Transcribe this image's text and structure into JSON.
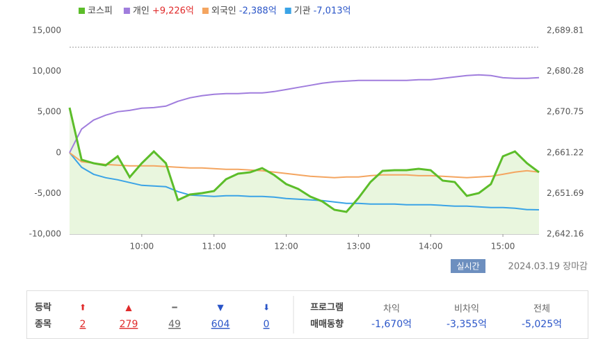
{
  "chart_data": {
    "type": "line",
    "x": [
      540,
      550,
      560,
      570,
      580,
      590,
      600,
      610,
      620,
      630,
      640,
      650,
      660,
      670,
      680,
      690,
      700,
      710,
      720,
      730,
      740,
      750,
      760,
      770,
      780,
      790,
      800,
      810,
      820,
      830,
      840,
      850,
      860,
      870,
      880,
      890,
      900,
      910,
      920,
      930
    ],
    "xlim": [
      540,
      930
    ],
    "xticks": [
      {
        "value": 600,
        "label": "10:00"
      },
      {
        "value": 660,
        "label": "11:00"
      },
      {
        "value": 720,
        "label": "12:00"
      },
      {
        "value": 780,
        "label": "13:00"
      },
      {
        "value": 840,
        "label": "14:00"
      },
      {
        "value": 900,
        "label": "15:00"
      }
    ],
    "ylim": [
      -10000,
      15000
    ],
    "yticks": [
      {
        "value": -10000,
        "label": "-10,000"
      },
      {
        "value": -5000,
        "label": "-5,000"
      },
      0,
      {
        "value": 5000,
        "label": "5,000"
      },
      {
        "value": 10000,
        "label": "10,000"
      },
      {
        "value": 15000,
        "label": "15,000"
      }
    ],
    "y2lim": [
      2642.16,
      2689.81
    ],
    "y2ticks": [
      {
        "value": 2642.16,
        "label": "2,642.16"
      },
      {
        "value": 2651.69,
        "label": "2,651.69"
      },
      {
        "value": 2661.22,
        "label": "2,661.22"
      },
      {
        "value": 2670.75,
        "label": "2,670.75"
      },
      {
        "value": 2680.28,
        "label": "2,680.28"
      },
      {
        "value": 2689.81,
        "label": "2,689.81"
      }
    ],
    "y2_reference": 2685.9,
    "series": [
      {
        "name": "코스피",
        "color": "#5cbd2a",
        "fill": "#e9f6de",
        "axis": "y2",
        "area": true,
        "values": [
          2671.76,
          2659.56,
          2658.75,
          2658.26,
          2660.37,
          2655.5,
          2658.75,
          2661.51,
          2658.75,
          2650.13,
          2651.43,
          2651.75,
          2652.24,
          2655.01,
          2656.31,
          2656.63,
          2657.61,
          2655.98,
          2653.87,
          2652.73,
          2650.94,
          2649.8,
          2647.85,
          2647.36,
          2650.62,
          2654.36,
          2656.96,
          2657.12,
          2657.12,
          2657.45,
          2657.12,
          2654.68,
          2654.36,
          2651.1,
          2651.75,
          2653.87,
          2660.37,
          2661.51,
          2658.75,
          2656.63
        ]
      },
      {
        "name": "개인",
        "color": "#a07ddd",
        "total_label": "+9,226억",
        "total_color": "#e02a2a",
        "values": [
          0,
          2900,
          4010,
          4610,
          5030,
          5200,
          5460,
          5540,
          5720,
          6310,
          6740,
          7000,
          7170,
          7250,
          7250,
          7340,
          7340,
          7510,
          7760,
          8020,
          8280,
          8530,
          8700,
          8790,
          8870,
          8870,
          8870,
          8870,
          8870,
          8960,
          8960,
          9130,
          9300,
          9470,
          9560,
          9470,
          9210,
          9130,
          9130,
          9226
        ]
      },
      {
        "name": "외국인",
        "color": "#f4a560",
        "total_label": "-2,388억",
        "total_color": "#2a55c8",
        "values": [
          0,
          -1110,
          -1280,
          -1450,
          -1540,
          -1620,
          -1620,
          -1620,
          -1710,
          -1790,
          -1880,
          -1880,
          -1960,
          -2050,
          -2050,
          -2130,
          -2220,
          -2390,
          -2560,
          -2730,
          -2900,
          -2990,
          -3070,
          -2990,
          -2990,
          -2820,
          -2730,
          -2730,
          -2730,
          -2820,
          -2820,
          -2900,
          -2990,
          -3070,
          -2990,
          -2900,
          -2650,
          -2390,
          -2220,
          -2388
        ]
      },
      {
        "name": "기관",
        "color": "#3aa3e6",
        "total_label": "-7,013억",
        "total_color": "#2a55c8",
        "values": [
          0,
          -1790,
          -2650,
          -3070,
          -3330,
          -3670,
          -4010,
          -4090,
          -4180,
          -4780,
          -5200,
          -5290,
          -5370,
          -5290,
          -5290,
          -5370,
          -5370,
          -5460,
          -5630,
          -5710,
          -5800,
          -5880,
          -6060,
          -6230,
          -6230,
          -6310,
          -6310,
          -6310,
          -6400,
          -6400,
          -6400,
          -6480,
          -6570,
          -6570,
          -6650,
          -6740,
          -6740,
          -6820,
          -6990,
          -7013
        ]
      }
    ]
  },
  "status": {
    "badge": "실시간",
    "date": "2024.03.19 장마감"
  },
  "breadth": {
    "labels": [
      "등락",
      "종목"
    ],
    "items": [
      {
        "symbol": "⬆",
        "count": 2,
        "color": "#e02a2a"
      },
      {
        "symbol": "▲",
        "count": 279,
        "color": "#e02a2a"
      },
      {
        "symbol": "━",
        "count": 49,
        "color": "#666666"
      },
      {
        "symbol": "▼",
        "count": 604,
        "color": "#2a55c8"
      },
      {
        "symbol": "⬇",
        "count": 0,
        "color": "#2a55c8"
      }
    ]
  },
  "program": {
    "title": [
      "프로그램",
      "매매동향"
    ],
    "items": [
      {
        "name": "차익",
        "value": "-1,670억"
      },
      {
        "name": "비차익",
        "value": "-3,355억"
      },
      {
        "name": "전체",
        "value": "-5,025억"
      }
    ]
  }
}
